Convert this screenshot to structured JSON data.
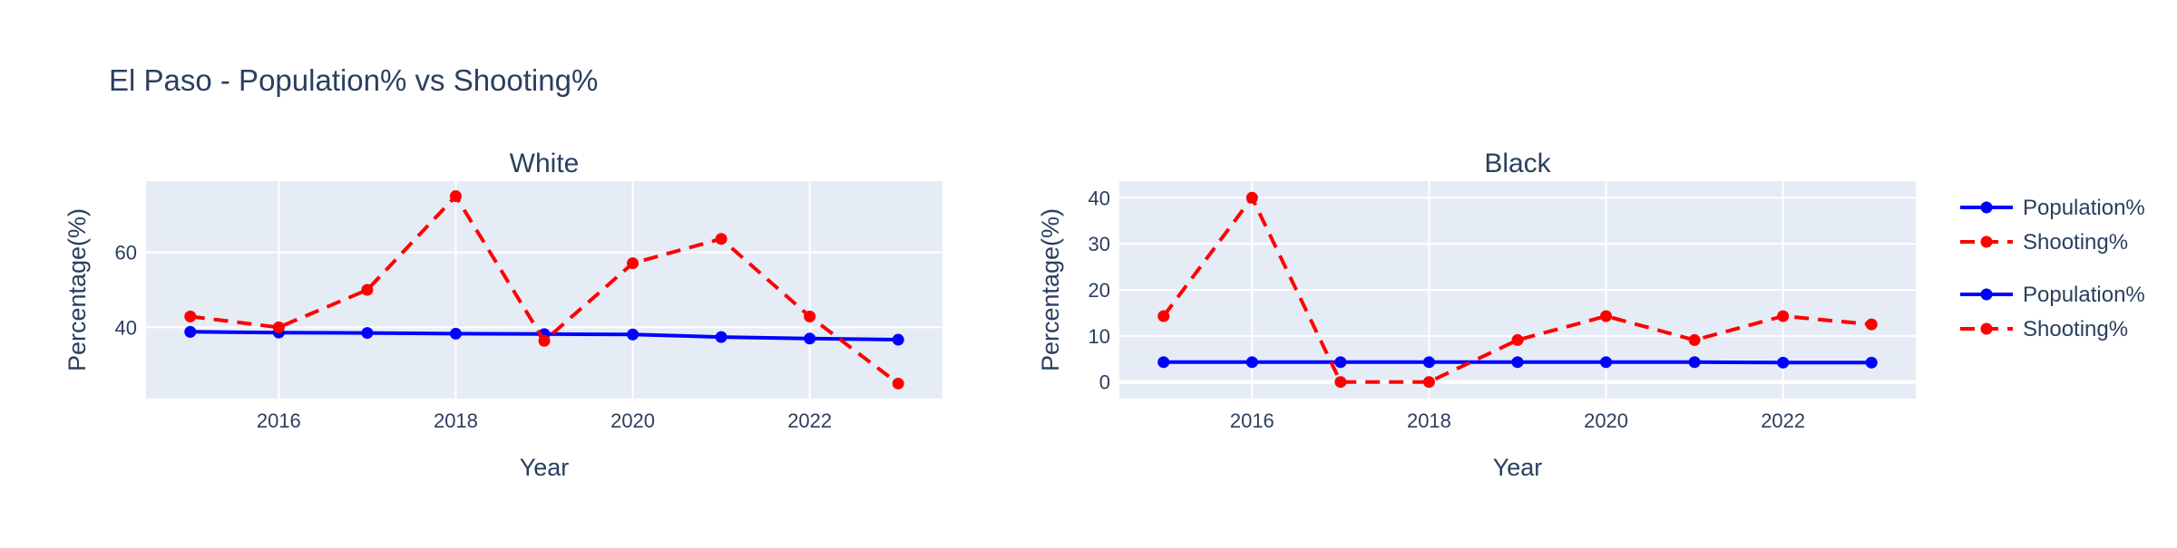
{
  "figure": {
    "title": "El Paso - Population% vs Shooting%"
  },
  "legend": {
    "placement": "right",
    "items": [
      {
        "label": "Population%",
        "color": "#0000ff",
        "dash": "solid"
      },
      {
        "label": "Shooting%",
        "color": "#ff0000",
        "dash": "dash"
      },
      {
        "label": "Population%",
        "color": "#0000ff",
        "dash": "solid"
      },
      {
        "label": "Shooting%",
        "color": "#ff0000",
        "dash": "dash"
      }
    ]
  },
  "chart_data": [
    {
      "type": "line",
      "title": "White",
      "xlabel": "Year",
      "ylabel": "Percentage(%)",
      "x": [
        2015,
        2016,
        2017,
        2018,
        2019,
        2020,
        2021,
        2022,
        2023
      ],
      "xlim": [
        2014.5,
        2023.5
      ],
      "xticks": [
        2016,
        2018,
        2020,
        2022
      ],
      "ylim": [
        21,
        79
      ],
      "yticks": [
        40,
        60
      ],
      "grid": true,
      "series": [
        {
          "name": "Population%",
          "color": "#0000ff",
          "dash": "solid",
          "values": [
            38.8,
            38.6,
            38.5,
            38.3,
            38.2,
            38.1,
            37.4,
            37.0,
            36.7
          ]
        },
        {
          "name": "Shooting%",
          "color": "#ff0000",
          "dash": "dash",
          "values": [
            42.9,
            40.0,
            50.0,
            75.0,
            36.4,
            57.1,
            63.6,
            42.9,
            25.0
          ]
        }
      ]
    },
    {
      "type": "line",
      "title": "Black",
      "xlabel": "Year",
      "ylabel": "Percentage(%)",
      "x": [
        2015,
        2016,
        2017,
        2018,
        2019,
        2020,
        2021,
        2022,
        2023
      ],
      "xlim": [
        2014.5,
        2023.5
      ],
      "xticks": [
        2016,
        2018,
        2020,
        2022
      ],
      "ylim": [
        -3.6,
        43.6
      ],
      "yticks": [
        0,
        10,
        20,
        30,
        40
      ],
      "grid": true,
      "series": [
        {
          "name": "Population%",
          "color": "#0000ff",
          "dash": "solid",
          "values": [
            4.3,
            4.3,
            4.3,
            4.3,
            4.3,
            4.3,
            4.3,
            4.2,
            4.2
          ]
        },
        {
          "name": "Shooting%",
          "color": "#ff0000",
          "dash": "dash",
          "values": [
            14.3,
            40.0,
            0.0,
            0.0,
            9.1,
            14.3,
            9.1,
            14.3,
            12.5
          ]
        }
      ]
    }
  ]
}
